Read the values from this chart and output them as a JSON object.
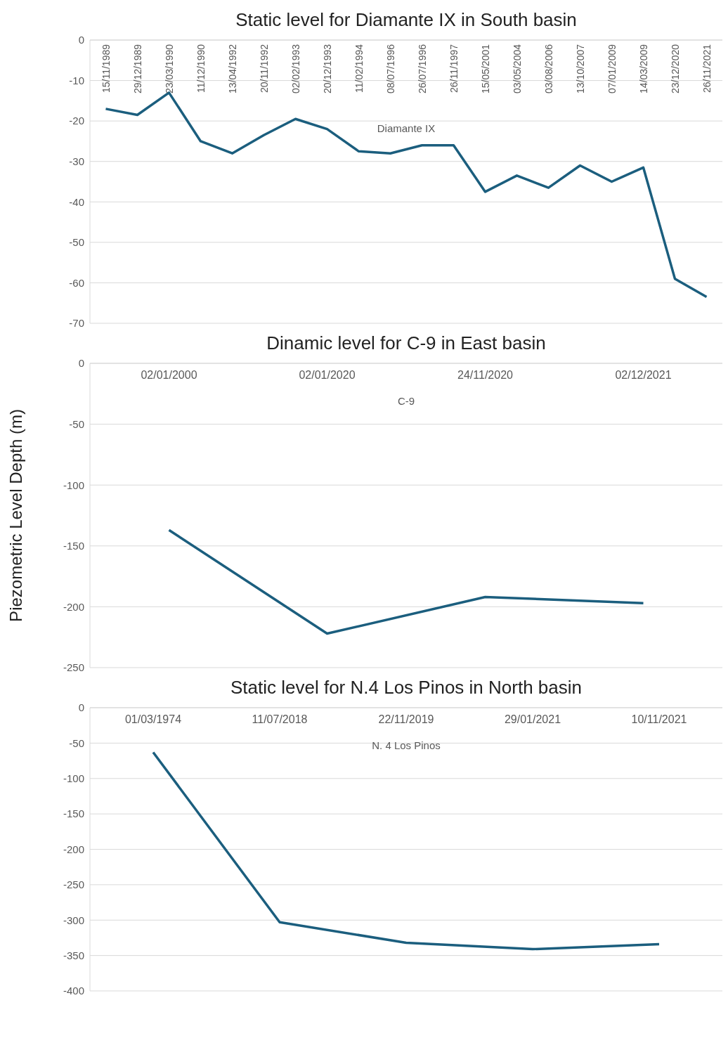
{
  "chart_data": [
    {
      "type": "line",
      "title": "Static level for Diamante IX in South basin",
      "categories": [
        "15/11/1989",
        "29/12/1989",
        "23/03/1990",
        "11/12/1990",
        "13/04/1992",
        "20/11/1992",
        "02/02/1993",
        "20/12/1993",
        "11/02/1994",
        "08/07/1996",
        "26/07/1996",
        "26/11/1997",
        "15/05/2001",
        "03/05/2004",
        "03/08/2006",
        "13/10/2007",
        "07/01/2009",
        "14/03/2009",
        "23/12/2020",
        "26/11/2021"
      ],
      "series": [
        {
          "name": "Diamante IX",
          "color": "#1b5e7e",
          "values": [
            -17,
            -18.5,
            -13,
            -25,
            -28,
            -23.5,
            -19.5,
            -22,
            -27.5,
            -28,
            -26,
            -26,
            -37.5,
            -33.5,
            -36.5,
            -31,
            -35,
            -31.5,
            -59,
            -63.5
          ]
        }
      ],
      "ylim": [
        -70,
        0
      ],
      "yticks": [
        -70,
        -60,
        -50,
        -40,
        -30,
        -20,
        -10,
        0
      ],
      "grid": "y",
      "line_style": "solid"
    },
    {
      "type": "line",
      "title": "Dinamic level for C-9 in East basin",
      "ylabel": "Piezometric Level  Depth (m)",
      "categories": [
        "02/01/2000",
        "02/01/2020",
        "24/11/2020",
        "02/12/2021"
      ],
      "series": [
        {
          "name": "C-9",
          "color": "#1b5e7e",
          "values": [
            -137,
            -222,
            -192,
            -197
          ]
        }
      ],
      "ylim": [
        -250,
        0
      ],
      "yticks": [
        -250,
        -200,
        -150,
        -100,
        -50,
        0
      ],
      "grid": "y",
      "line_style": "solid"
    },
    {
      "type": "line",
      "title": "Static level for N.4 Los Pinos in North basin",
      "categories": [
        "01/03/1974",
        "11/07/2018",
        "22/11/2019",
        "29/01/2021",
        "10/11/2021"
      ],
      "series": [
        {
          "name": "N. 4 Los Pinos",
          "color": "#1b5e7e",
          "values": [
            -63,
            -303,
            -332,
            -341,
            -334
          ]
        }
      ],
      "ylim": [
        -400,
        0
      ],
      "yticks": [
        -400,
        -350,
        -300,
        -250,
        -200,
        -150,
        -100,
        -50,
        0
      ],
      "grid": "y",
      "line_style": "solid"
    }
  ]
}
